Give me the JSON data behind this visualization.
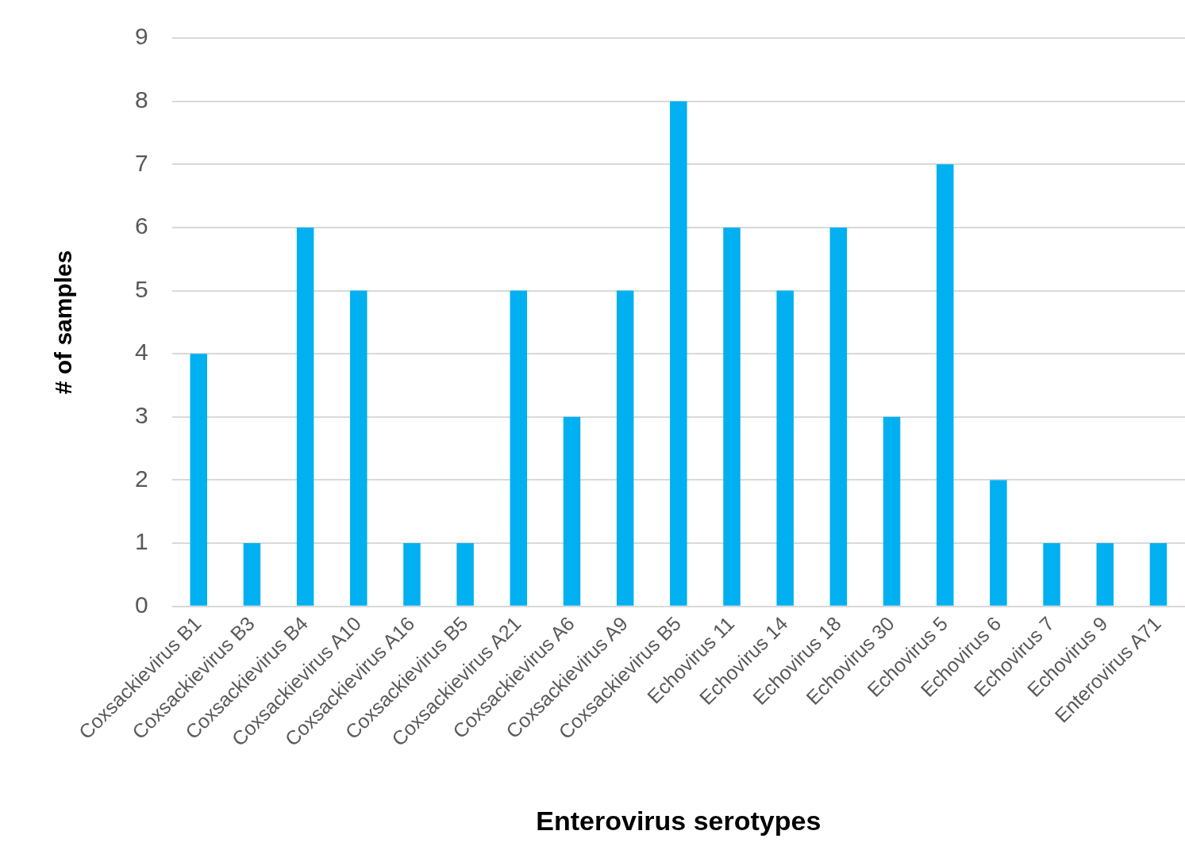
{
  "chart_data": {
    "type": "bar",
    "xlabel": "Enterovirus serotypes",
    "ylabel": "# of samples",
    "categories": [
      "Coxsackievirus B1",
      "Coxsackievirus B3",
      "Coxsackievirus B4",
      "Coxsackievirus A10",
      "Coxsackievirus A16",
      "Coxsackievirus B5",
      "Coxsackievirus A21",
      "Coxsackievirus A6",
      "Coxsackievirus A9",
      "Coxsackievirus B5",
      "Echovirus 11",
      "Echovirus 14",
      "Echovirus 18",
      "Echovirus 30",
      "Echovirus 5",
      "Echovirus 6",
      "Echovirus 7",
      "Echovirus 9",
      "Enterovirus A71"
    ],
    "values": [
      4,
      1,
      6,
      5,
      1,
      1,
      5,
      3,
      5,
      8,
      6,
      5,
      6,
      3,
      7,
      2,
      1,
      1,
      1
    ],
    "color": "#00b0f0",
    "ylim": [
      0,
      9
    ],
    "yticks": [
      0,
      1,
      2,
      3,
      4,
      5,
      6,
      7,
      8,
      9
    ],
    "grid": "y",
    "legend": false
  }
}
